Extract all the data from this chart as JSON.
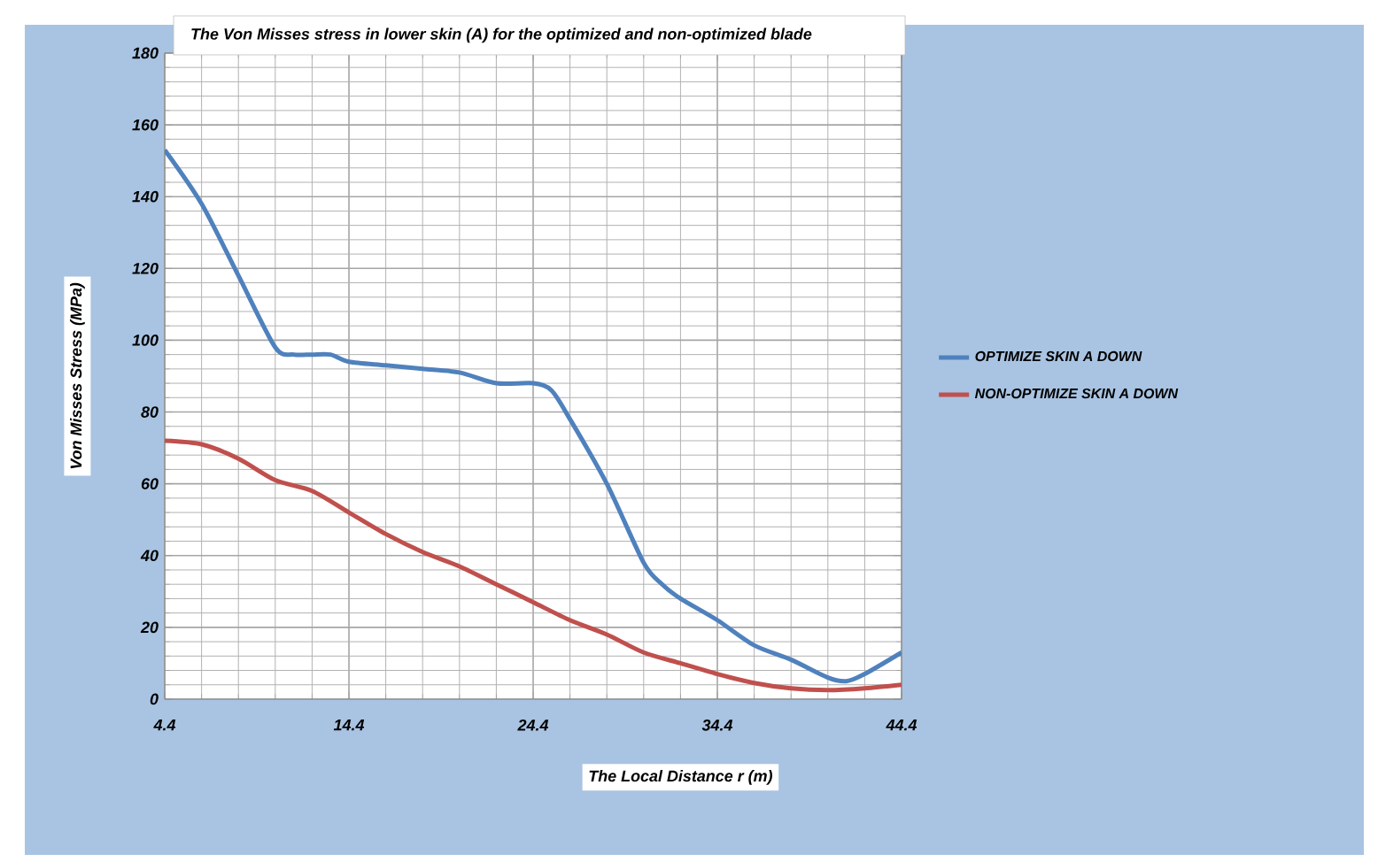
{
  "chart_data": {
    "type": "line",
    "title": "The Von Misses stress in lower skin (A) for the optimized and non-optimized blade",
    "xlabel": "The Local Distance r (m)",
    "ylabel": "Von Misses Stress (MPa)",
    "series": [
      {
        "name": "OPTIMIZE SKIN A DOWN",
        "color": "#4f81bd",
        "x": [
          4.4,
          6.4,
          8.4,
          10.4,
          11.4,
          12.4,
          13.4,
          14.4,
          16.4,
          18.4,
          20.4,
          22.4,
          24.4,
          25.4,
          26.4,
          28.4,
          30.4,
          31.4,
          32.4,
          34.4,
          36.4,
          38.4,
          40.4,
          41.4,
          42.4,
          44.4
        ],
        "values": [
          153,
          138,
          118,
          98,
          96,
          96,
          96,
          94,
          93,
          92,
          91,
          88,
          88,
          86,
          78,
          60,
          38,
          32,
          28,
          22,
          15,
          11,
          6,
          5,
          7,
          13
        ]
      },
      {
        "name": "NON-OPTIMIZE SKIN A DOWN",
        "color": "#c0504d",
        "x": [
          4.4,
          6.4,
          8.4,
          10.4,
          12.4,
          14.4,
          16.4,
          18.4,
          20.4,
          22.4,
          24.4,
          26.4,
          28.4,
          30.4,
          32.4,
          34.4,
          36.4,
          38.4,
          40.4,
          42.4,
          44.4
        ],
        "values": [
          72,
          71,
          67,
          61,
          58,
          52,
          46,
          41,
          37,
          32,
          27,
          22,
          18,
          13,
          10,
          7,
          4.5,
          3,
          2.5,
          3,
          4
        ]
      }
    ],
    "xlim": [
      4.4,
      44.4
    ],
    "xticks": [
      4.4,
      14.4,
      24.4,
      34.4,
      44.4
    ],
    "ylim": [
      0,
      180
    ],
    "yticks": [
      0,
      20,
      40,
      60,
      80,
      100,
      120,
      140,
      160,
      180
    ],
    "grid": true,
    "legend": "right",
    "line_style": "solid",
    "marker": "none"
  }
}
